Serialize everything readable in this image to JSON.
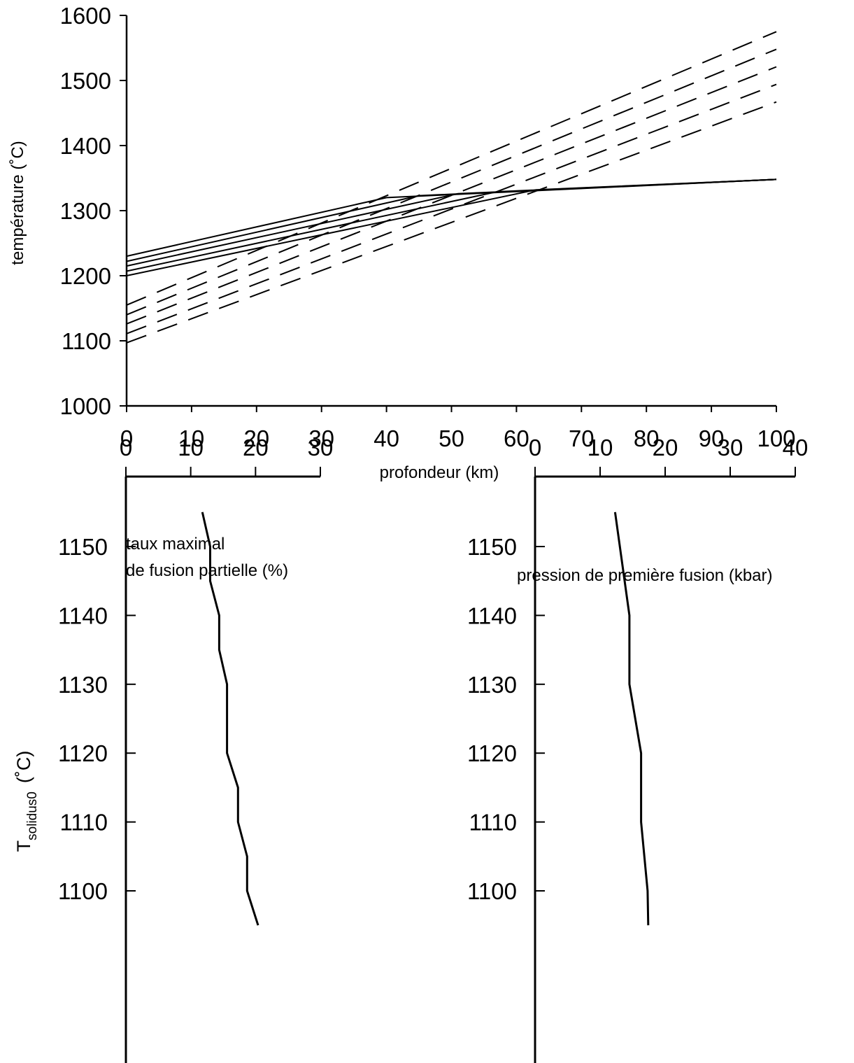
{
  "chart_data": [
    {
      "type": "line",
      "xlabel": "profondeur (km)",
      "ylabel": "température (˚C)",
      "xlim": [
        0,
        100
      ],
      "ylim": [
        1000,
        1600
      ],
      "xticks": [
        "0",
        "10",
        "20",
        "30",
        "40",
        "50",
        "60",
        "70",
        "80",
        "90",
        "100"
      ],
      "yticks": [
        "1000",
        "1100",
        "1200",
        "1300",
        "1400",
        "1500",
        "1600"
      ],
      "grid": false,
      "legend": "none",
      "series": [
        {
          "style": "solid",
          "points": [
            [
              0,
              1230
            ],
            [
              40,
              1320
            ],
            [
              100,
              1348
            ]
          ]
        },
        {
          "style": "solid",
          "points": [
            [
              0,
              1222
            ],
            [
              45,
              1323
            ],
            [
              100,
              1348
            ]
          ]
        },
        {
          "style": "solid",
          "points": [
            [
              0,
              1215
            ],
            [
              51,
              1326
            ],
            [
              100,
              1348
            ]
          ]
        },
        {
          "style": "solid",
          "points": [
            [
              0,
              1207
            ],
            [
              57,
              1329
            ],
            [
              100,
              1348
            ]
          ]
        },
        {
          "style": "solid",
          "points": [
            [
              0,
              1200
            ],
            [
              63,
              1332
            ],
            [
              100,
              1348
            ]
          ]
        },
        {
          "style": "dashed",
          "points": [
            [
              0,
              1155
            ],
            [
              100,
              1575
            ]
          ]
        },
        {
          "style": "dashed",
          "points": [
            [
              0,
              1140
            ],
            [
              100,
              1548
            ]
          ]
        },
        {
          "style": "dashed",
          "points": [
            [
              0,
              1126
            ],
            [
              100,
              1521
            ]
          ]
        },
        {
          "style": "dashed",
          "points": [
            [
              0,
              1111
            ],
            [
              100,
              1494
            ]
          ]
        },
        {
          "style": "dashed",
          "points": [
            [
              0,
              1097
            ],
            [
              100,
              1467
            ]
          ]
        }
      ]
    },
    {
      "type": "line",
      "title": "taux maximal\nde fusion partielle (%)",
      "title_lines": [
        "taux maximal",
        "de fusion partielle (%)"
      ],
      "ylabel_main": "T",
      "ylabel_sub": "solidus0",
      "ylabel_unit": "(˚C)",
      "xlim": [
        0,
        30
      ],
      "xticks": [
        "0",
        "10",
        "20",
        "30"
      ],
      "ylim": [
        1095,
        1155
      ],
      "yticks": [
        "1100",
        "1110",
        "1120",
        "1130",
        "1140",
        "1150"
      ],
      "series": [
        {
          "points": [
            [
              11.8,
              1155
            ],
            [
              13,
              1150
            ],
            [
              13,
              1145
            ],
            [
              14.4,
              1140
            ],
            [
              14.4,
              1135
            ],
            [
              15.6,
              1130
            ],
            [
              15.6,
              1120
            ],
            [
              17.3,
              1115
            ],
            [
              17.3,
              1110
            ],
            [
              18.7,
              1105
            ],
            [
              18.7,
              1100
            ],
            [
              20.4,
              1095
            ]
          ]
        }
      ]
    },
    {
      "type": "line",
      "title": "pression de première fusion (kbar)",
      "xlim": [
        0,
        40
      ],
      "xticks": [
        "0",
        "10",
        "20",
        "30",
        "40"
      ],
      "ylim": [
        1095,
        1155
      ],
      "yticks": [
        "1100",
        "1110",
        "1120",
        "1130",
        "1140",
        "1150"
      ],
      "series": [
        {
          "points": [
            [
              12.3,
              1155
            ],
            [
              14.5,
              1140
            ],
            [
              14.5,
              1130
            ],
            [
              16.3,
              1120
            ],
            [
              16.3,
              1110
            ],
            [
              17.3,
              1100
            ],
            [
              17.4,
              1095
            ]
          ]
        }
      ]
    }
  ]
}
